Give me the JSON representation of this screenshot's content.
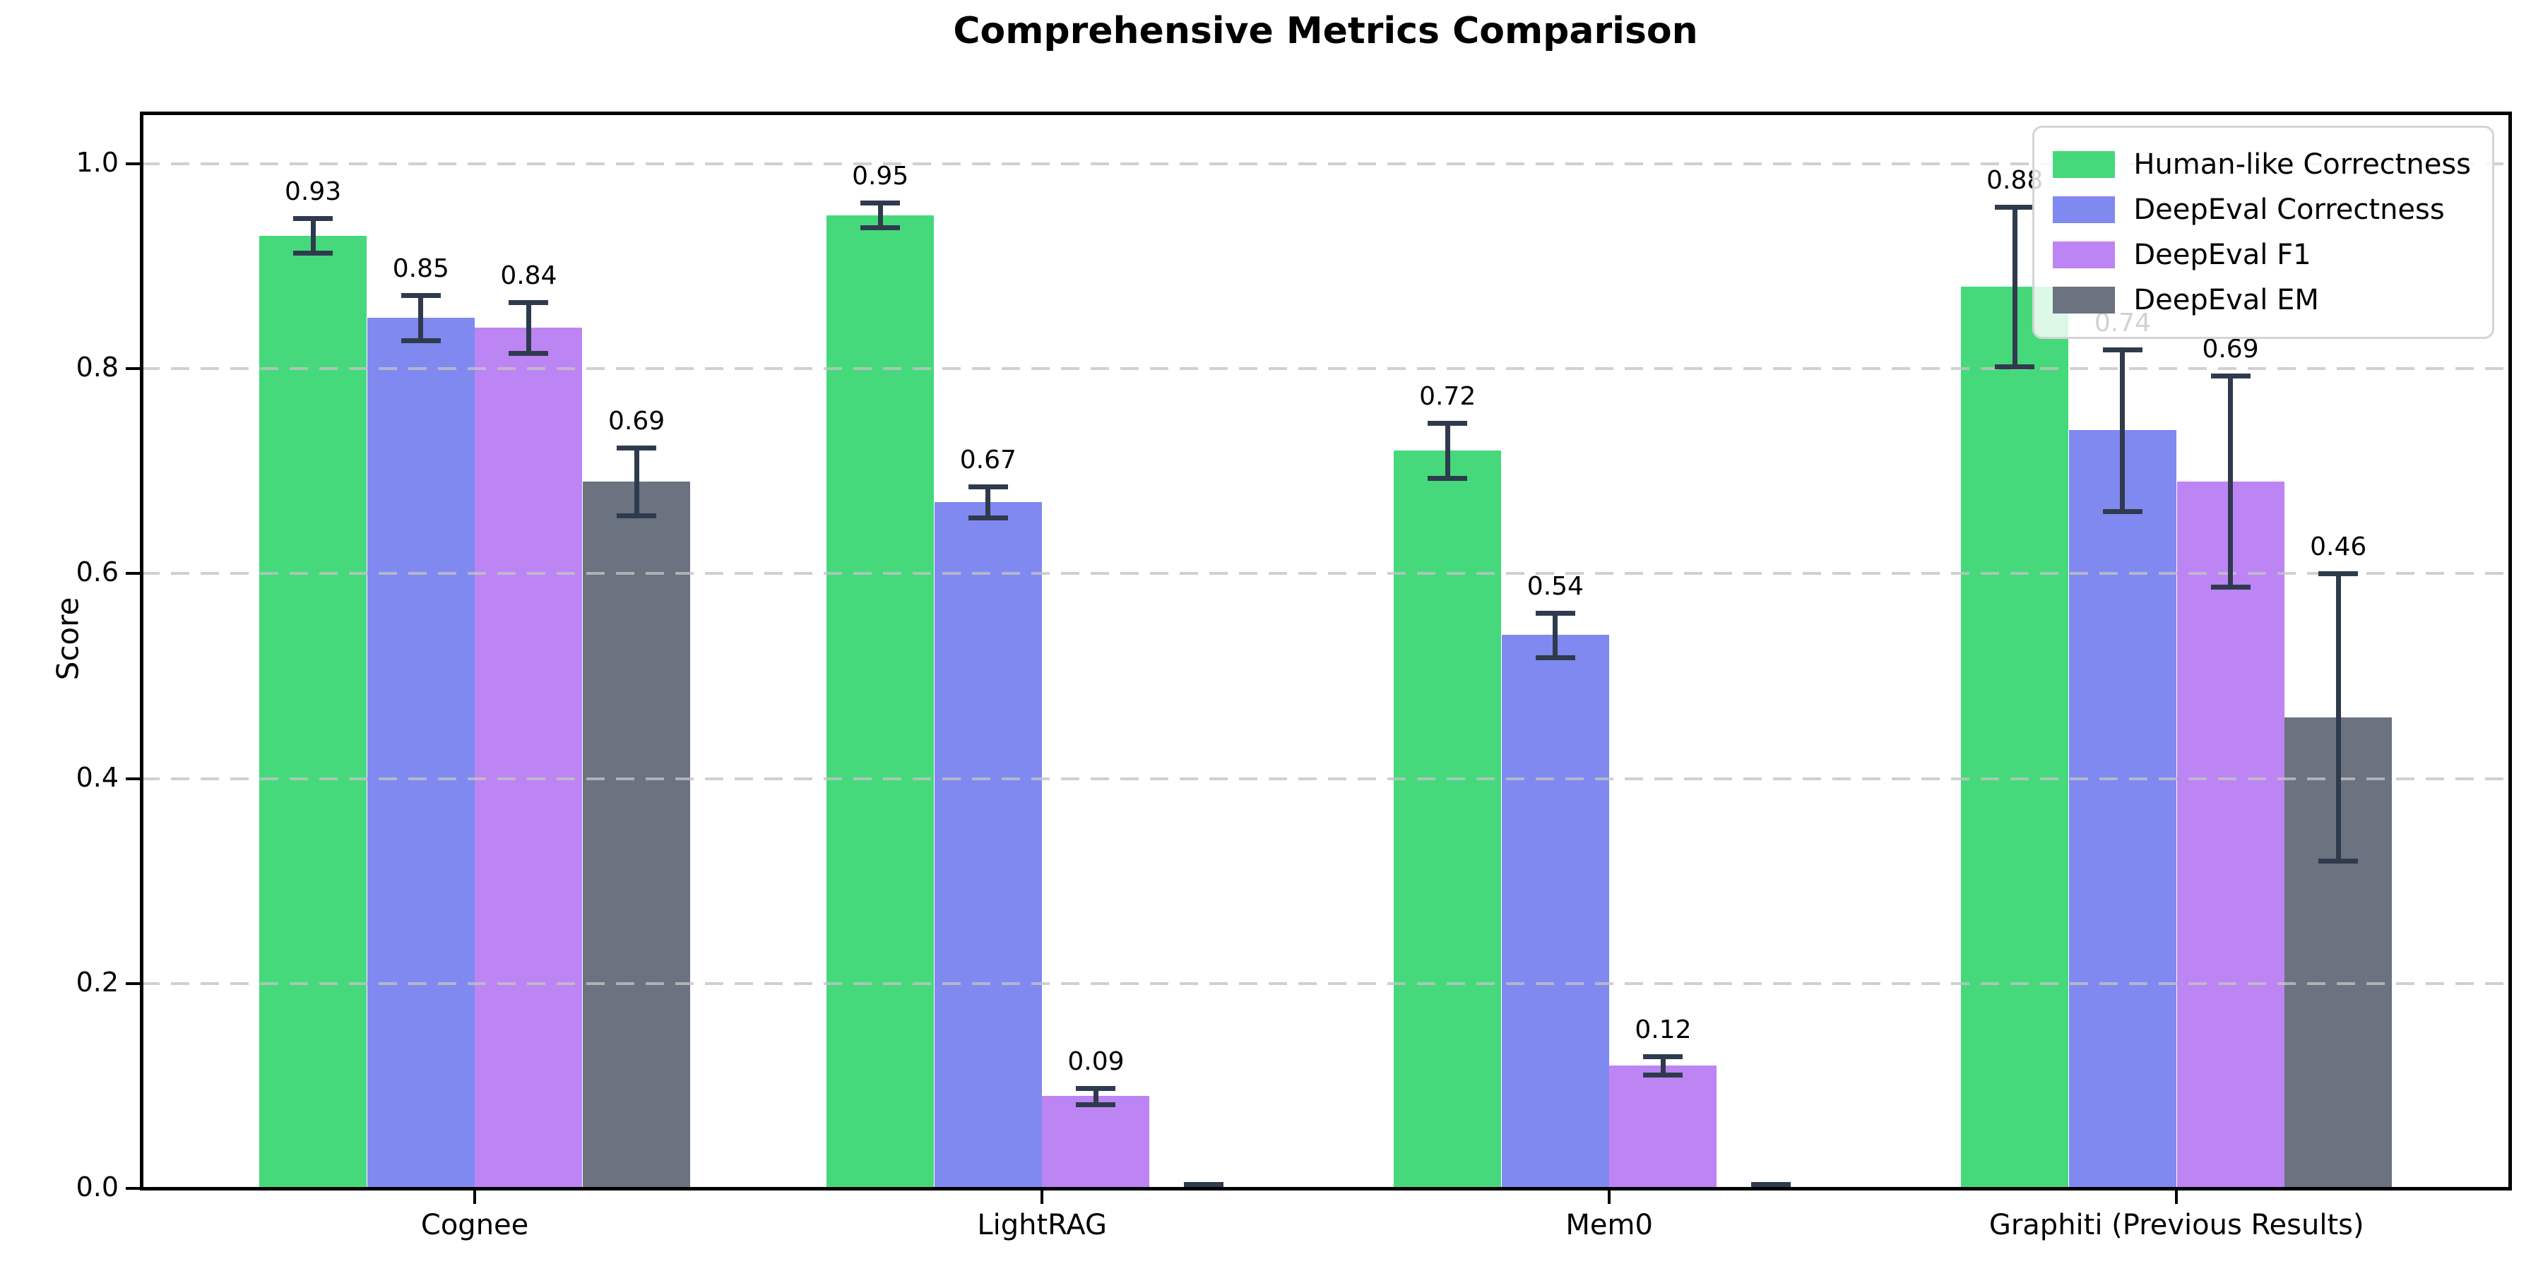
{
  "chart_data": {
    "type": "bar",
    "title": "Comprehensive Metrics Comparison",
    "xlabel": "",
    "ylabel": "Score",
    "categories": [
      "Cognee",
      "LightRAG",
      "Mem0",
      "Graphiti (Previous Results)"
    ],
    "series": [
      {
        "name": "Human-like Correctness",
        "color": "#45d97c",
        "values": [
          0.93,
          0.95,
          0.72,
          0.88
        ],
        "errors": [
          0.017,
          0.012,
          0.027,
          0.078
        ],
        "labels": [
          "0.93",
          "0.95",
          "0.72",
          "0.88"
        ]
      },
      {
        "name": "DeepEval Correctness",
        "color": "#8089f0",
        "values": [
          0.85,
          0.67,
          0.54,
          0.74
        ],
        "errors": [
          0.022,
          0.015,
          0.022,
          0.079
        ],
        "labels": [
          "0.85",
          "0.67",
          "0.54",
          "0.74"
        ]
      },
      {
        "name": "DeepEval F1",
        "color": "#bd84f4",
        "values": [
          0.84,
          0.09,
          0.12,
          0.69
        ],
        "errors": [
          0.025,
          0.008,
          0.009,
          0.103
        ],
        "labels": [
          "0.84",
          "0.09",
          "0.12",
          "0.69"
        ]
      },
      {
        "name": "DeepEval EM",
        "color": "#6b7280",
        "values": [
          0.69,
          0.0,
          0.0,
          0.46
        ],
        "errors": [
          0.033,
          0.004,
          0.004,
          0.14
        ],
        "labels": [
          "0.69",
          "",
          "",
          "0.46"
        ]
      }
    ],
    "ytick_labels": [
      "0.0",
      "0.2",
      "0.4",
      "0.6",
      "0.8",
      "1.0"
    ],
    "yticks": [
      0.0,
      0.2,
      0.4,
      0.6,
      0.8,
      1.0
    ],
    "ylim": [
      0,
      1.05
    ],
    "grid": {
      "horizontal": true,
      "style": "dashed",
      "color": "#d6d6d6"
    },
    "error_bar_color": "#2f3b4d",
    "legend_position": "upper right"
  }
}
